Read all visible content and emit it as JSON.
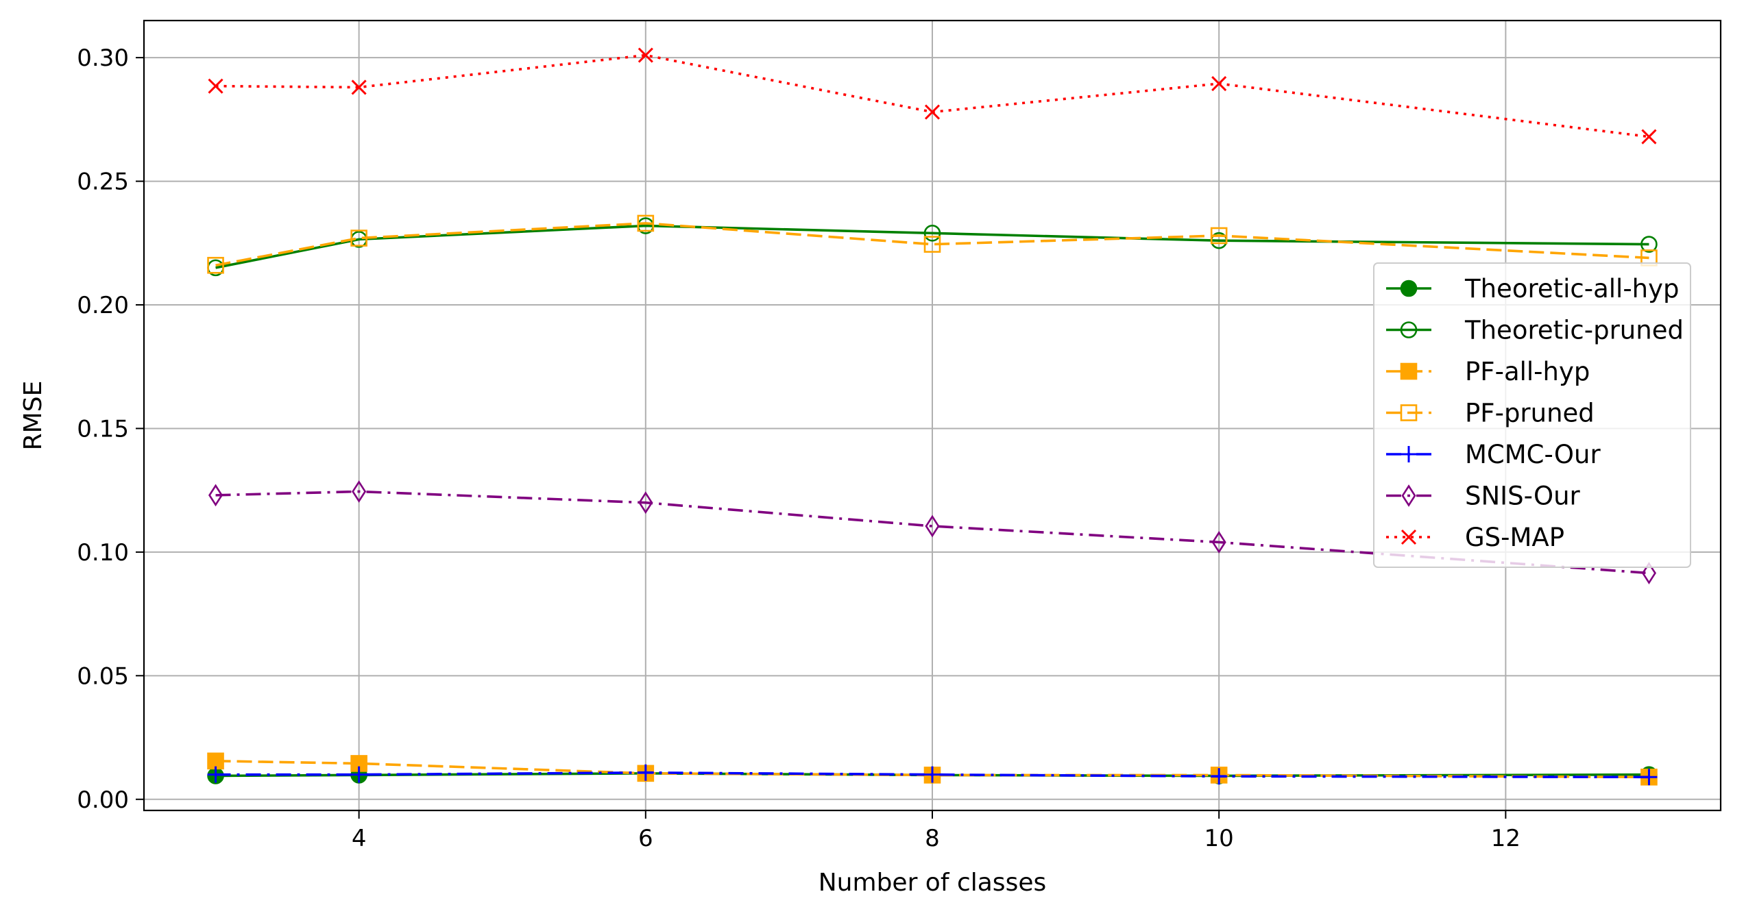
{
  "chart_data": {
    "type": "line",
    "title": "",
    "xlabel": "Number of classes",
    "ylabel": "RMSE",
    "x": [
      3,
      4,
      6,
      8,
      10,
      13
    ],
    "xlim": [
      2.5,
      13.5
    ],
    "ylim": [
      -0.0045,
      0.315
    ],
    "xticks": [
      4,
      6,
      8,
      10,
      12
    ],
    "xtick_labels": [
      "4",
      "6",
      "8",
      "10",
      "12"
    ],
    "yticks": [
      0.0,
      0.05,
      0.1,
      0.15,
      0.2,
      0.25,
      0.3
    ],
    "ytick_labels": [
      "0.00",
      "0.05",
      "0.10",
      "0.15",
      "0.20",
      "0.25",
      "0.30"
    ],
    "grid": true,
    "legend_position": "center-right",
    "series": [
      {
        "name": "Theoretic-all-hyp",
        "values": [
          0.0095,
          0.0098,
          0.0105,
          0.0098,
          0.0095,
          0.01
        ],
        "color": "#008000",
        "dash": "solid",
        "marker": "circle-filled"
      },
      {
        "name": "Theoretic-pruned",
        "values": [
          0.215,
          0.2265,
          0.232,
          0.229,
          0.226,
          0.2245
        ],
        "color": "#008000",
        "dash": "solid",
        "marker": "circle-open"
      },
      {
        "name": "PF-all-hyp",
        "values": [
          0.0155,
          0.0145,
          0.0105,
          0.0098,
          0.0098,
          0.009
        ],
        "color": "#ffa500",
        "dash": "dashed",
        "marker": "square-filled"
      },
      {
        "name": "PF-pruned",
        "values": [
          0.216,
          0.227,
          0.233,
          0.2245,
          0.228,
          0.219
        ],
        "color": "#ffa500",
        "dash": "dashed",
        "marker": "square-open"
      },
      {
        "name": "MCMC-Our",
        "values": [
          0.01,
          0.01,
          0.0108,
          0.01,
          0.0093,
          0.009
        ],
        "color": "#0000ff",
        "dash": "dashdot",
        "marker": "plus"
      },
      {
        "name": "SNIS-Our",
        "values": [
          0.123,
          0.1245,
          0.12,
          0.1105,
          0.104,
          0.0915
        ],
        "color": "#800080",
        "dash": "dashdot",
        "marker": "thin-diamond"
      },
      {
        "name": "GS-MAP",
        "values": [
          0.2885,
          0.288,
          0.301,
          0.278,
          0.2895,
          0.268
        ],
        "color": "#ff0000",
        "dash": "dotted",
        "marker": "x"
      }
    ]
  }
}
